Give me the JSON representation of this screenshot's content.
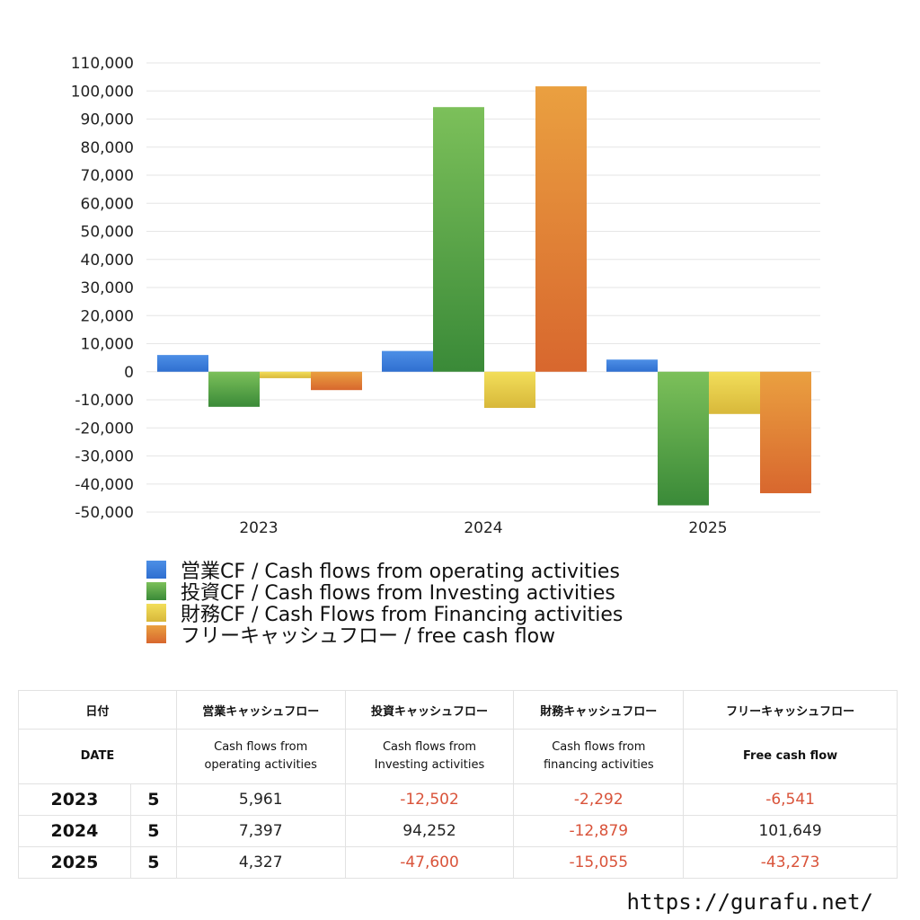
{
  "chart_data": {
    "type": "bar",
    "categories": [
      "2023",
      "2024",
      "2025"
    ],
    "series": [
      {
        "name": "営業CF / Cash flows from operating activities",
        "values": [
          5961,
          7397,
          4327
        ]
      },
      {
        "name": "投資CF / Cash flows from Investing activities",
        "values": [
          -12502,
          94252,
          -47600
        ]
      },
      {
        "name": "財務CF / Cash Flows from Financing activities",
        "values": [
          -2292,
          -12879,
          -15055
        ]
      },
      {
        "name": "フリーキャッシュフロー / free cash flow",
        "values": [
          -6541,
          101649,
          -43273
        ]
      }
    ],
    "ylim": [
      -50000,
      110000
    ],
    "yticks": [
      "110,000",
      "100,000",
      "90,000",
      "80,000",
      "70,000",
      "60,000",
      "50,000",
      "40,000",
      "30,000",
      "20,000",
      "10,000",
      "0",
      "-10,000",
      "-20,000",
      "-30,000",
      "-40,000",
      "-50,000"
    ],
    "grid": true,
    "legend_position": "bottom-left",
    "colors": [
      {
        "top": "#4d8fe6",
        "bottom": "#2f6fd0"
      },
      {
        "top": "#7cc05a",
        "bottom": "#3a8a38"
      },
      {
        "top": "#f2de5a",
        "bottom": "#d8b83a"
      },
      {
        "top": "#eaa040",
        "bottom": "#d8672e"
      }
    ]
  },
  "table": {
    "header_row1": [
      "日付",
      "営業キャッシュフロー",
      "投資キャッシュフロー",
      "財務キャッシュフロー",
      "フリーキャッシュフロー"
    ],
    "header_row2": {
      "date": "DATE",
      "operating": [
        "Cash flows from",
        "operating activities"
      ],
      "investing": [
        "Cash flows from",
        "Investing activities"
      ],
      "financing": [
        "Cash flows from",
        "financing activities"
      ],
      "free": "Free cash flow"
    },
    "rows": [
      {
        "year": "2023",
        "month": "5",
        "operating": "5,961",
        "investing": "-12,502",
        "financing": "-2,292",
        "free": "-6,541"
      },
      {
        "year": "2024",
        "month": "5",
        "operating": "7,397",
        "investing": "94,252",
        "financing": "-12,879",
        "free": "101,649"
      },
      {
        "year": "2025",
        "month": "5",
        "operating": "4,327",
        "investing": "-47,600",
        "financing": "-15,055",
        "free": "-43,273"
      }
    ]
  },
  "site": "https://gurafu.net/"
}
